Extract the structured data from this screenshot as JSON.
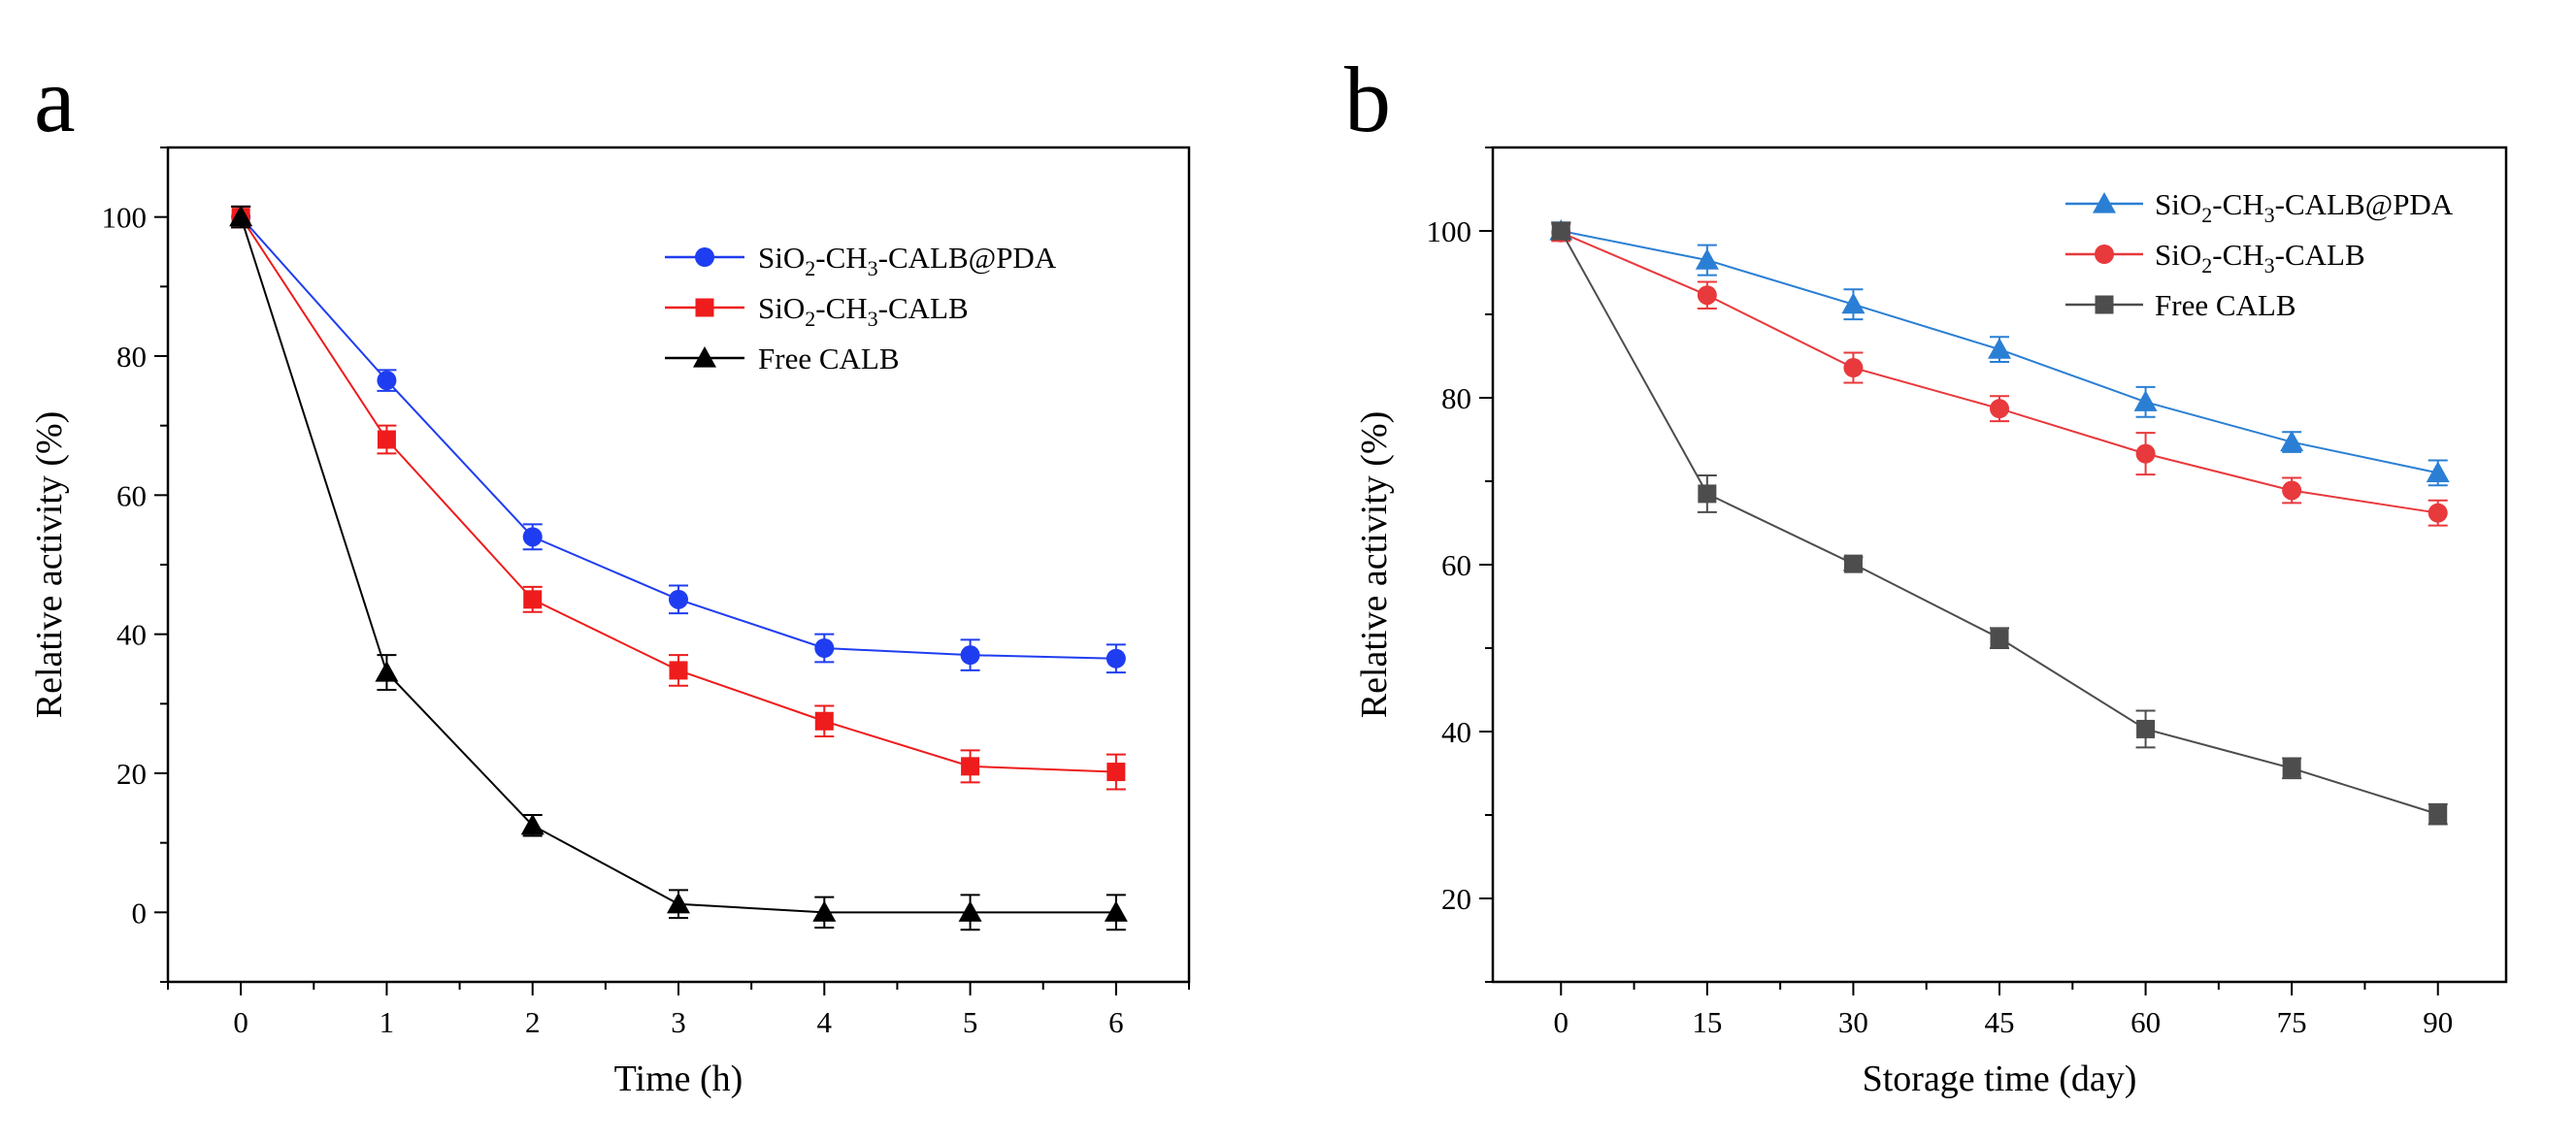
{
  "figure": {
    "description_labels": [
      "a",
      "b"
    ]
  },
  "chart_data": [
    {
      "panel": "a",
      "type": "line",
      "title": "",
      "xlabel": "Time (h)",
      "ylabel": "Relative activity (%)",
      "xlim": [
        -0.5,
        6.5
      ],
      "ylim": [
        -10,
        110
      ],
      "xticks": [
        0,
        1,
        2,
        3,
        4,
        5,
        6
      ],
      "yticks": [
        0,
        20,
        40,
        60,
        80,
        100
      ],
      "legend_position": "top-right",
      "grid": false,
      "series": [
        {
          "name_parts": [
            "SiO",
            "2",
            "-CH",
            "3",
            "-CALB@PDA"
          ],
          "color": "#1f3df0",
          "marker": "circle",
          "x": [
            0,
            1,
            2,
            3,
            4,
            5,
            6
          ],
          "y": [
            100,
            76.5,
            54,
            45,
            38,
            37,
            36.5
          ],
          "err": [
            1.5,
            1.5,
            1.8,
            2.0,
            2.0,
            2.2,
            2.0
          ]
        },
        {
          "name_parts": [
            "SiO",
            "2",
            "-CH",
            "3",
            "-CALB"
          ],
          "color": "#ee1c1c",
          "marker": "square",
          "x": [
            0,
            1,
            2,
            3,
            4,
            5,
            6
          ],
          "y": [
            100,
            68,
            45,
            34.8,
            27.5,
            21,
            20.2
          ],
          "err": [
            1.5,
            2.0,
            1.8,
            2.2,
            2.2,
            2.3,
            2.5
          ]
        },
        {
          "name_parts": [
            "Free CALB"
          ],
          "color": "#000000",
          "marker": "triangle",
          "x": [
            0,
            1,
            2,
            3,
            4,
            5,
            6
          ],
          "y": [
            100,
            34.5,
            12.5,
            1.2,
            0,
            0,
            0
          ],
          "err": [
            1.5,
            2.5,
            1.5,
            2.0,
            2.2,
            2.5,
            2.5
          ]
        }
      ]
    },
    {
      "panel": "b",
      "type": "line",
      "title": "",
      "xlabel": "Storage time (day)",
      "ylabel": "Relative activity (%)",
      "xlim": [
        -7,
        97
      ],
      "ylim": [
        10,
        110
      ],
      "xticks": [
        0,
        15,
        30,
        45,
        60,
        75,
        90
      ],
      "yticks": [
        20,
        40,
        60,
        80,
        100
      ],
      "legend_position": "top-right",
      "grid": false,
      "series": [
        {
          "name_parts": [
            "SiO",
            "2",
            "-CH",
            "3",
            "-CALB@PDA"
          ],
          "color": "#2a7fd4",
          "marker": "triangle",
          "x": [
            0,
            15,
            30,
            45,
            60,
            75,
            90
          ],
          "y": [
            100,
            96.5,
            91.2,
            85.8,
            79.5,
            74.7,
            71
          ],
          "err": [
            1.0,
            1.8,
            1.8,
            1.5,
            1.8,
            1.2,
            1.5
          ]
        },
        {
          "name_parts": [
            "SiO",
            "2",
            "-CH",
            "3",
            "-CALB"
          ],
          "color": "#e8393c",
          "marker": "circle",
          "x": [
            0,
            15,
            30,
            45,
            60,
            75,
            90
          ],
          "y": [
            99.8,
            92.3,
            83.6,
            78.7,
            73.3,
            68.9,
            66.2
          ],
          "err": [
            1.0,
            1.6,
            1.8,
            1.5,
            2.5,
            1.5,
            1.5
          ]
        },
        {
          "name_parts": [
            "Free CALB"
          ],
          "color": "#4d4d4d",
          "marker": "square",
          "x": [
            0,
            15,
            30,
            45,
            60,
            75,
            90
          ],
          "y": [
            100,
            68.5,
            60.1,
            51.2,
            40.3,
            35.6,
            30.1
          ],
          "err": [
            1.0,
            2.2,
            0.8,
            1.2,
            2.2,
            1.2,
            1.2
          ]
        }
      ]
    }
  ]
}
